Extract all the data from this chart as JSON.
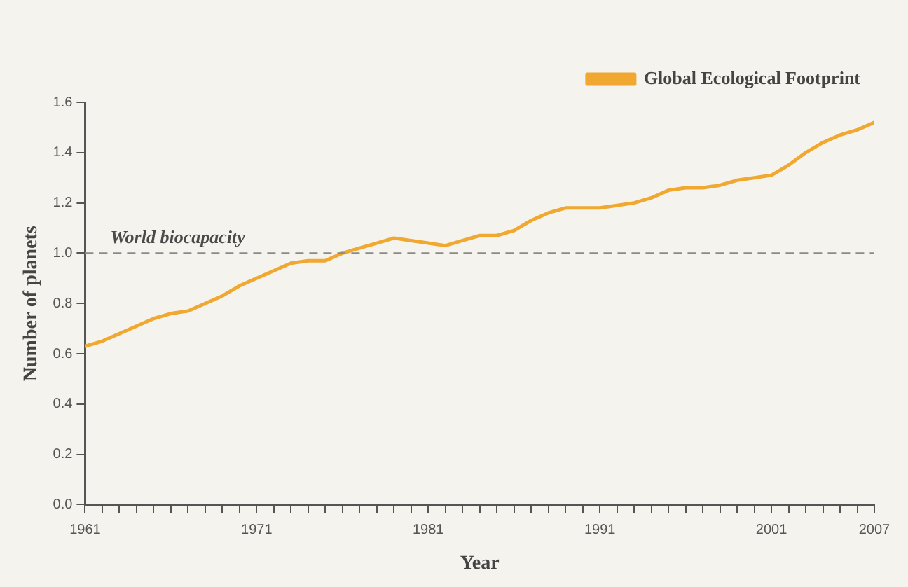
{
  "chart_data": {
    "type": "line",
    "xlabel": "Year",
    "ylabel": "Number of planets",
    "x": [
      1961,
      1962,
      1963,
      1964,
      1965,
      1966,
      1967,
      1968,
      1969,
      1970,
      1971,
      1972,
      1973,
      1974,
      1975,
      1976,
      1977,
      1978,
      1979,
      1980,
      1981,
      1982,
      1983,
      1984,
      1985,
      1986,
      1987,
      1988,
      1989,
      1990,
      1991,
      1992,
      1993,
      1994,
      1995,
      1996,
      1997,
      1998,
      1999,
      2000,
      2001,
      2002,
      2003,
      2004,
      2005,
      2006,
      2007
    ],
    "series": [
      {
        "name": "Global Ecological Footprint",
        "color": "#f0a830",
        "values": [
          0.63,
          0.65,
          0.68,
          0.71,
          0.74,
          0.76,
          0.77,
          0.8,
          0.83,
          0.87,
          0.9,
          0.93,
          0.96,
          0.97,
          0.97,
          1.0,
          1.02,
          1.04,
          1.06,
          1.05,
          1.04,
          1.03,
          1.05,
          1.07,
          1.07,
          1.09,
          1.13,
          1.16,
          1.18,
          1.18,
          1.18,
          1.19,
          1.2,
          1.22,
          1.25,
          1.26,
          1.26,
          1.27,
          1.29,
          1.3,
          1.31,
          1.35,
          1.4,
          1.44,
          1.47,
          1.49,
          1.52
        ]
      }
    ],
    "xlim": [
      1961,
      2007
    ],
    "xticks": [
      1961,
      {
        "value": 1962,
        "label": null
      },
      {
        "value": 1963,
        "label": null
      },
      {
        "value": 1964,
        "label": null
      },
      {
        "value": 1965,
        "label": null
      },
      {
        "value": 1966,
        "label": null
      },
      {
        "value": 1967,
        "label": null
      },
      {
        "value": 1968,
        "label": null
      },
      {
        "value": 1969,
        "label": null
      },
      {
        "value": 1970,
        "label": null
      },
      1971,
      {
        "value": 1972,
        "label": null
      },
      {
        "value": 1973,
        "label": null
      },
      {
        "value": 1974,
        "label": null
      },
      {
        "value": 1975,
        "label": null
      },
      {
        "value": 1976,
        "label": null
      },
      {
        "value": 1977,
        "label": null
      },
      {
        "value": 1978,
        "label": null
      },
      {
        "value": 1979,
        "label": null
      },
      {
        "value": 1980,
        "label": null
      },
      1981,
      {
        "value": 1982,
        "label": null
      },
      {
        "value": 1983,
        "label": null
      },
      {
        "value": 1984,
        "label": null
      },
      {
        "value": 1985,
        "label": null
      },
      {
        "value": 1986,
        "label": null
      },
      {
        "value": 1987,
        "label": null
      },
      {
        "value": 1988,
        "label": null
      },
      {
        "value": 1989,
        "label": null
      },
      {
        "value": 1990,
        "label": null
      },
      1991,
      {
        "value": 1992,
        "label": null
      },
      {
        "value": 1993,
        "label": null
      },
      {
        "value": 1994,
        "label": null
      },
      {
        "value": 1995,
        "label": null
      },
      {
        "value": 1996,
        "label": null
      },
      {
        "value": 1997,
        "label": null
      },
      {
        "value": 1998,
        "label": null
      },
      {
        "value": 1999,
        "label": null
      },
      {
        "value": 2000,
        "label": null
      },
      2001,
      {
        "value": 2002,
        "label": null
      },
      {
        "value": 2003,
        "label": null
      },
      {
        "value": 2004,
        "label": null
      },
      {
        "value": 2005,
        "label": null
      },
      {
        "value": 2006,
        "label": null
      },
      2007
    ],
    "ylim": [
      0,
      1.6
    ],
    "yticks": [
      {
        "value": 0,
        "label": "0.0"
      },
      {
        "value": 0.2,
        "label": "0.2"
      },
      {
        "value": 0.4,
        "label": "0.4"
      },
      {
        "value": 0.6,
        "label": "0.6"
      },
      {
        "value": 0.8,
        "label": "0.8"
      },
      {
        "value": 1,
        "label": "1.0"
      },
      {
        "value": 1.2,
        "label": "1.2"
      },
      {
        "value": 1.4,
        "label": "1.4"
      },
      {
        "value": 1.6,
        "label": "1.6"
      }
    ],
    "ref_lines": [
      {
        "axis": "y",
        "value": 1,
        "label": "World biocapacity",
        "color": "#8a8a8a",
        "line_style": "dashed"
      }
    ],
    "grid": false,
    "legend": "top right",
    "marker": "none",
    "line_style": "solid"
  }
}
